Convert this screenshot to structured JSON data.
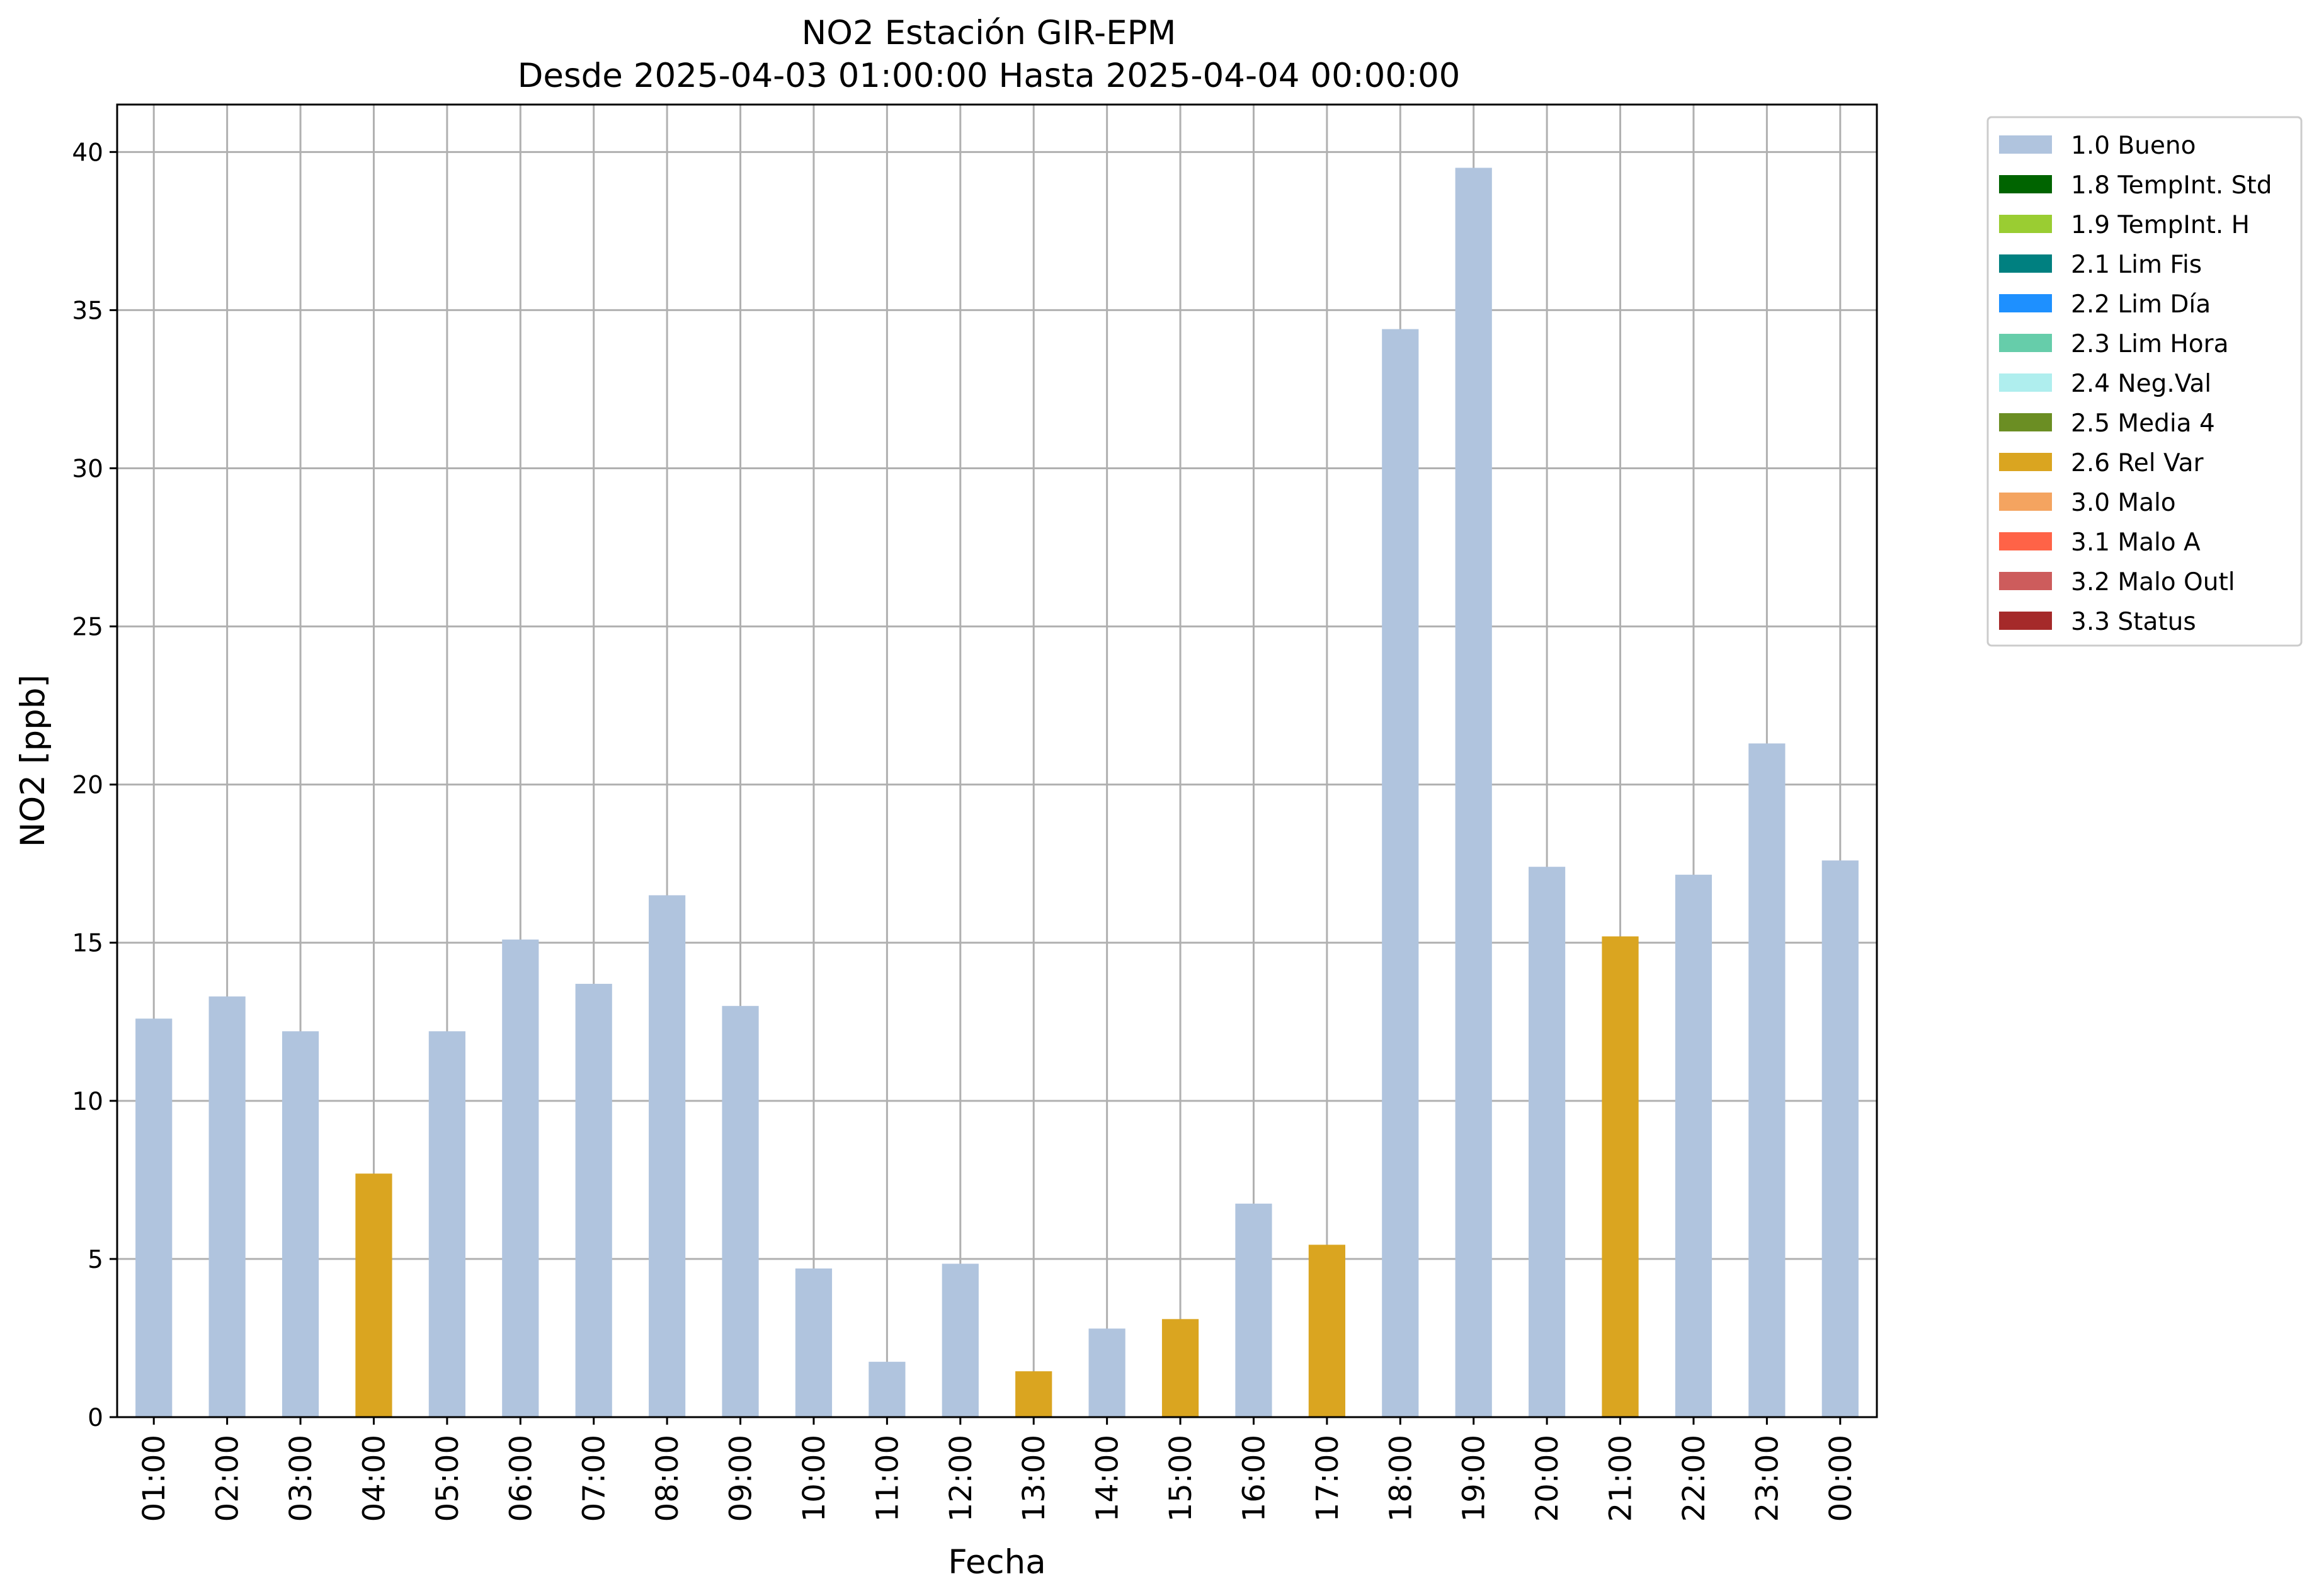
{
  "chart_data": {
    "type": "bar",
    "title": "NO2 Estación GIR-EPM",
    "subtitle": "Desde 2025-04-03 01:00:00 Hasta 2025-04-04 00:00:00",
    "xlabel": "Fecha",
    "ylabel": "NO2 [ppb]",
    "ylim": [
      0,
      41.5
    ],
    "yticks": [
      0,
      5,
      10,
      15,
      20,
      25,
      30,
      35,
      40
    ],
    "grid": true,
    "legend_position": "outside-top-right",
    "categories": [
      "01:00",
      "02:00",
      "03:00",
      "04:00",
      "05:00",
      "06:00",
      "07:00",
      "08:00",
      "09:00",
      "10:00",
      "11:00",
      "12:00",
      "13:00",
      "14:00",
      "15:00",
      "16:00",
      "17:00",
      "18:00",
      "19:00",
      "20:00",
      "21:00",
      "22:00",
      "23:00",
      "00:00"
    ],
    "values": [
      12.6,
      13.3,
      12.2,
      7.7,
      12.2,
      15.1,
      13.7,
      16.5,
      13.0,
      4.7,
      1.75,
      4.85,
      1.45,
      2.8,
      3.1,
      6.75,
      5.45,
      34.4,
      39.5,
      17.4,
      15.2,
      17.15,
      21.3,
      17.6
    ],
    "flags": [
      "1.0 Bueno",
      "1.0 Bueno",
      "1.0 Bueno",
      "2.6 Rel Var",
      "1.0 Bueno",
      "1.0 Bueno",
      "1.0 Bueno",
      "1.0 Bueno",
      "1.0 Bueno",
      "1.0 Bueno",
      "1.0 Bueno",
      "1.0 Bueno",
      "2.6 Rel Var",
      "1.0 Bueno",
      "2.6 Rel Var",
      "1.0 Bueno",
      "2.6 Rel Var",
      "1.0 Bueno",
      "1.0 Bueno",
      "1.0 Bueno",
      "2.6 Rel Var",
      "1.0 Bueno",
      "1.0 Bueno",
      "1.0 Bueno"
    ],
    "legend": [
      {
        "label": "1.0 Bueno",
        "color": "#b0c4de"
      },
      {
        "label": "1.8 TempInt. Std",
        "color": "#006400"
      },
      {
        "label": "1.9 TempInt. H",
        "color": "#9acd32"
      },
      {
        "label": "2.1 Lim Fis",
        "color": "#008080"
      },
      {
        "label": "2.2 Lim Día",
        "color": "#1e90ff"
      },
      {
        "label": "2.3 Lim Hora",
        "color": "#66cdaa"
      },
      {
        "label": "2.4 Neg.Val",
        "color": "#afeeee"
      },
      {
        "label": "2.5 Media 4",
        "color": "#6b8e23"
      },
      {
        "label": "2.6 Rel Var",
        "color": "#daa520"
      },
      {
        "label": "3.0 Malo",
        "color": "#f4a460"
      },
      {
        "label": "3.1 Malo A",
        "color": "#ff6347"
      },
      {
        "label": "3.2 Malo Outl",
        "color": "#cd5c5c"
      },
      {
        "label": "3.3 Status",
        "color": "#a52a2a"
      }
    ]
  }
}
